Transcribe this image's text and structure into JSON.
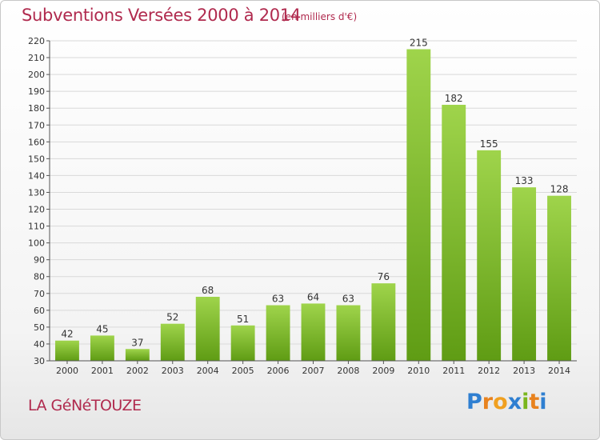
{
  "title": "Subventions Versées 2000 à 2014",
  "unit": "(en milliers d'€)",
  "place": "LA GéNéTOUZE",
  "logo": [
    "P",
    "r",
    "o",
    "x",
    "i",
    "t",
    "i"
  ],
  "colors": {
    "bar_top": "#9fd44b",
    "bar_bottom": "#5f9c14",
    "text_accent": "#b02a4e",
    "grid": "#d9d9d9"
  },
  "chart_data": {
    "type": "bar",
    "categories": [
      "2000",
      "2001",
      "2002",
      "2003",
      "2004",
      "2005",
      "2006",
      "2007",
      "2008",
      "2009",
      "2010",
      "2011",
      "2012",
      "2013",
      "2014"
    ],
    "values": [
      42,
      45,
      37,
      52,
      68,
      51,
      63,
      64,
      63,
      76,
      215,
      182,
      155,
      133,
      128
    ],
    "ylim": [
      30,
      220
    ],
    "yticks": [
      30,
      40,
      50,
      60,
      70,
      80,
      90,
      100,
      110,
      120,
      130,
      140,
      150,
      160,
      170,
      180,
      190,
      200,
      210,
      220
    ],
    "grid": true,
    "title": "Subventions Versées 2000 à 2014",
    "xlabel": "",
    "ylabel": ""
  }
}
